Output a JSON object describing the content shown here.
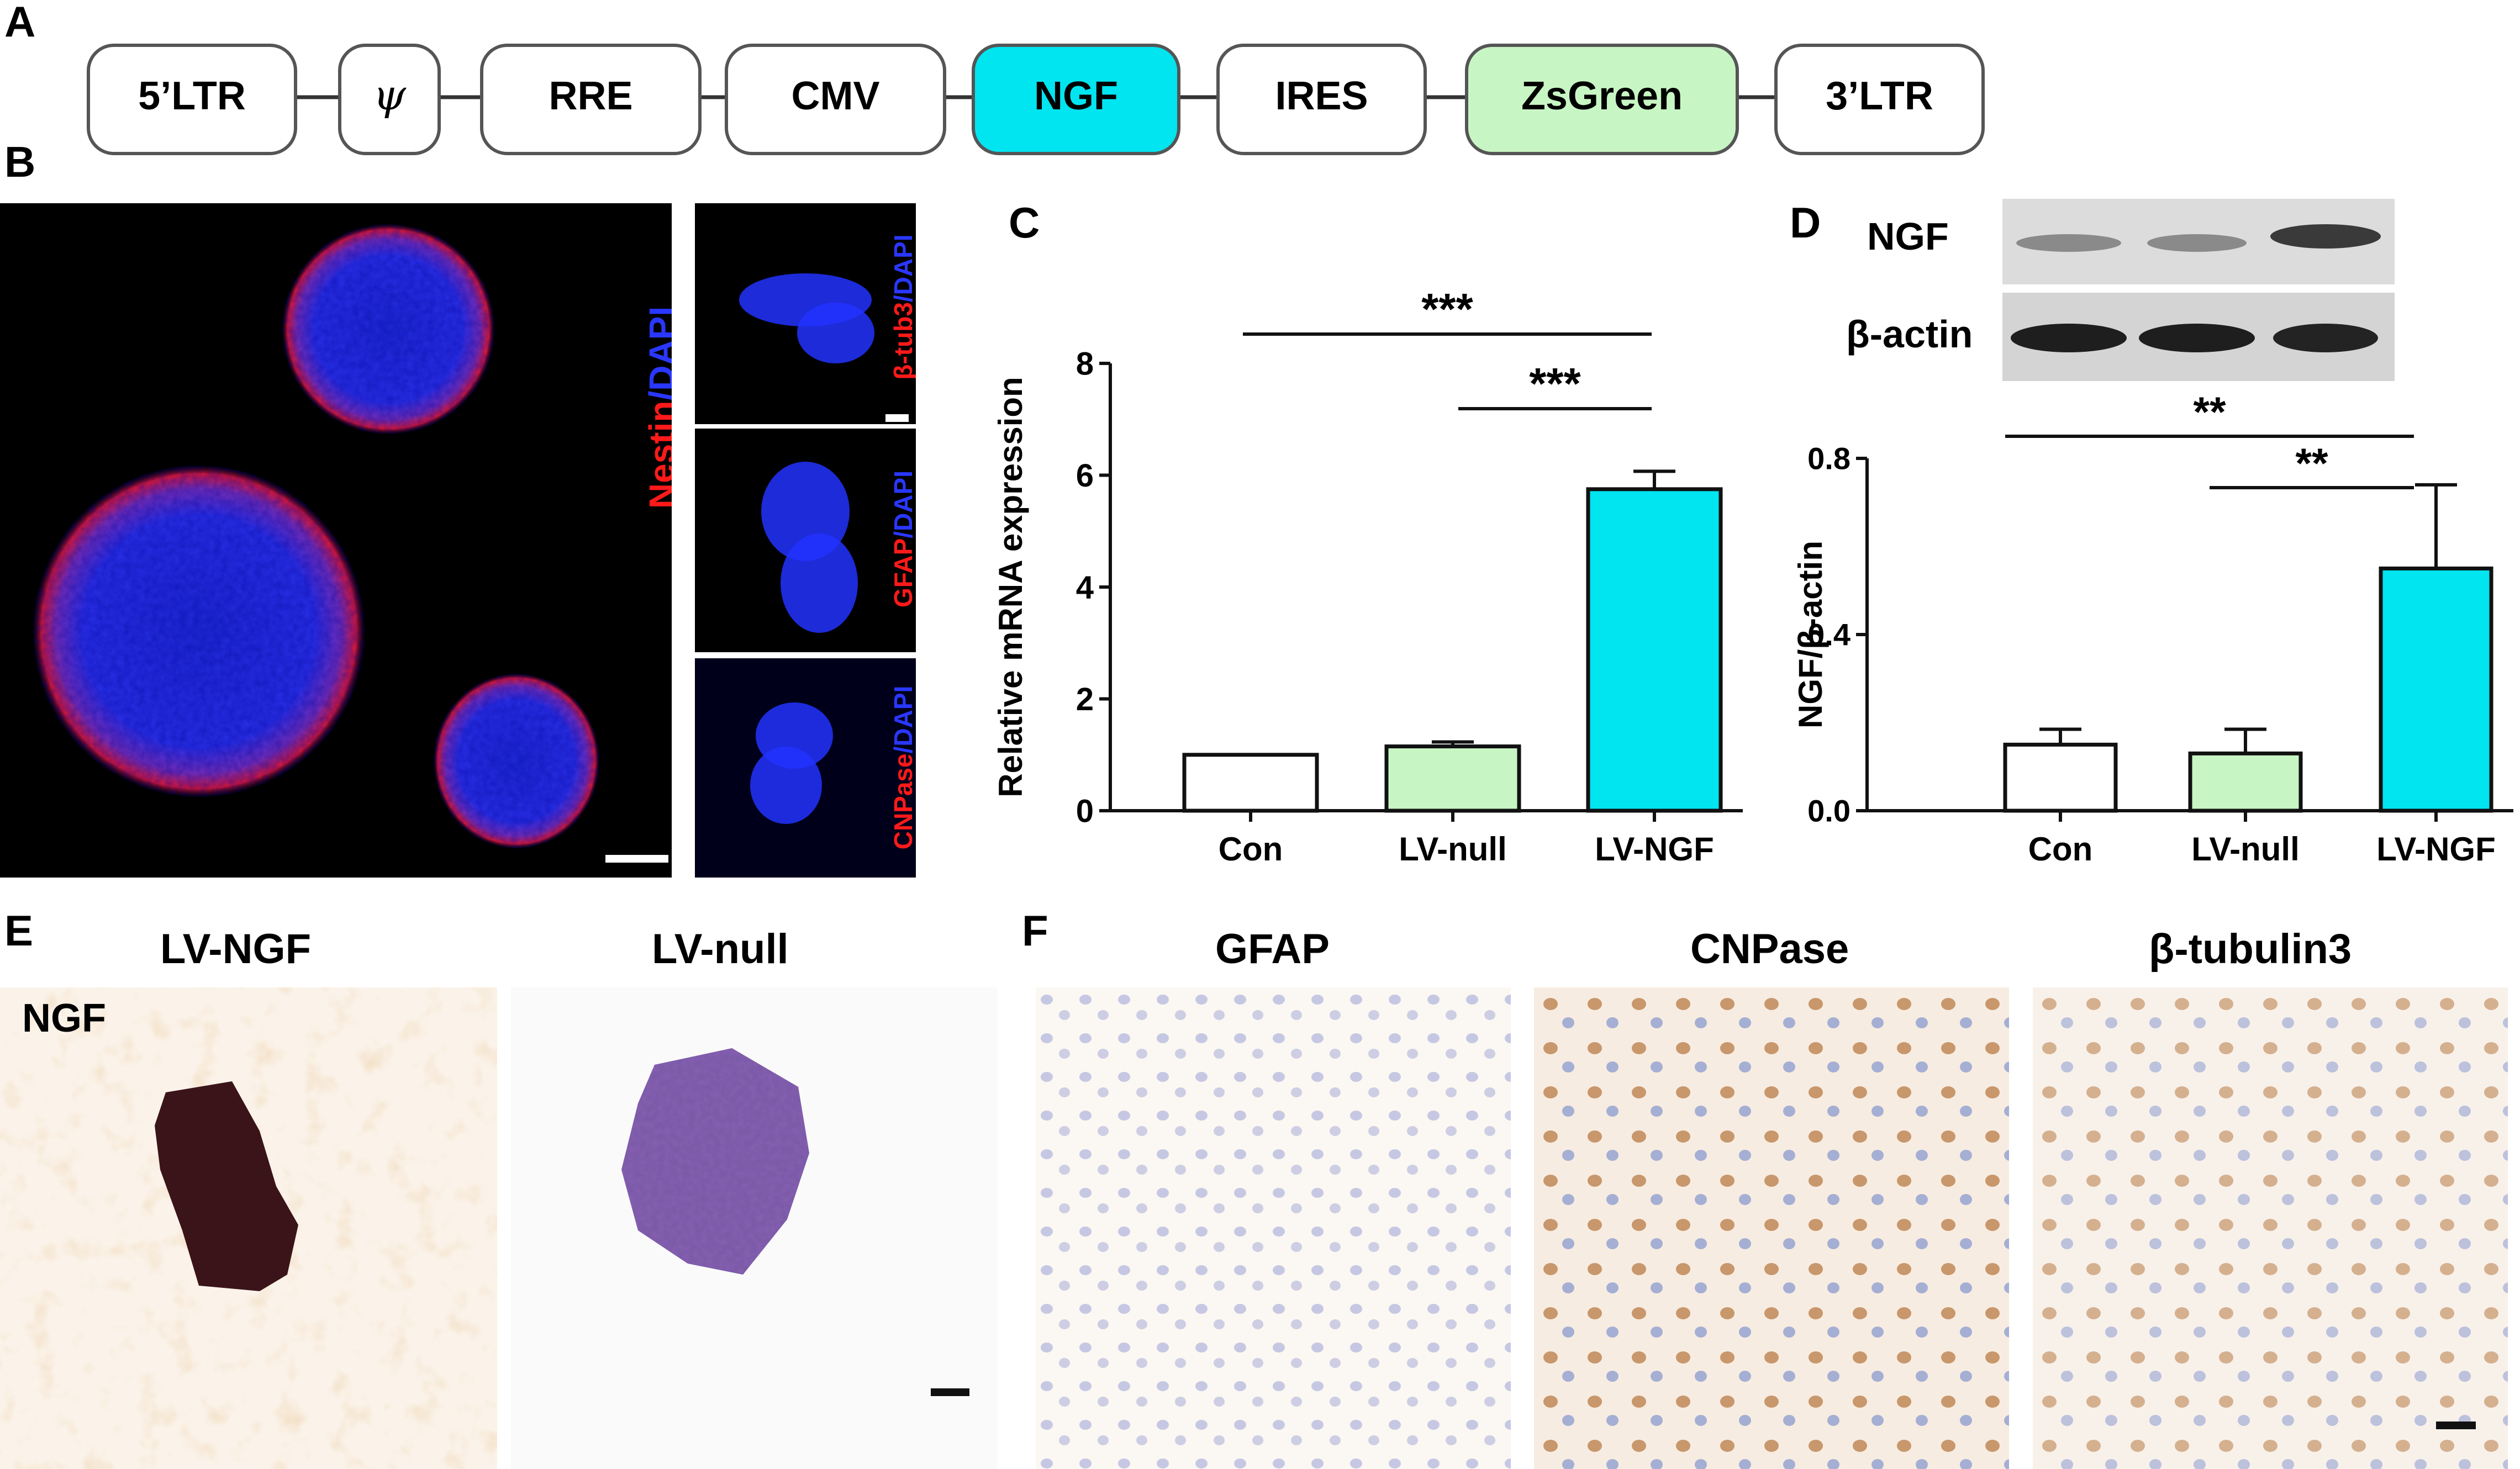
{
  "panel_labels": {
    "a": "A",
    "b": "B",
    "c": "C",
    "d": "D",
    "e": "E",
    "f": "F"
  },
  "construct": {
    "elements": [
      {
        "label": "5’LTR",
        "fill": "#ffffff"
      },
      {
        "label": "ψ",
        "fill": "#ffffff"
      },
      {
        "label": "RRE",
        "fill": "#ffffff"
      },
      {
        "label": "CMV",
        "fill": "#ffffff"
      },
      {
        "label": "NGF",
        "fill": "#00e5f0"
      },
      {
        "label": "IRES",
        "fill": "#ffffff"
      },
      {
        "label": "ZsGreen",
        "fill": "#c8f5c4"
      },
      {
        "label": "3’LTR",
        "fill": "#ffffff"
      }
    ]
  },
  "panel_b": {
    "main_label_nestin": "Nestin",
    "main_label_dapi": "/DAPI",
    "small": [
      {
        "marker": "β-tub3",
        "dapi": "/DAPI"
      },
      {
        "marker": "GFAP",
        "dapi": "/DAPI"
      },
      {
        "marker": "CNPase",
        "dapi": "/DAPI"
      }
    ],
    "colors": {
      "red": "#ff1a1a",
      "blue": "#1a2bff"
    }
  },
  "chart_data": [
    {
      "type": "bar",
      "panel": "C",
      "categories": [
        "Con",
        "LV-null",
        "LV-NGF"
      ],
      "values": [
        1.0,
        1.15,
        5.75
      ],
      "errors": [
        0.0,
        0.08,
        0.32
      ],
      "colors": [
        "#ffffff",
        "#c8f5c4",
        "#00e5f0"
      ],
      "ylabel": "Relative mRNA expression",
      "ylim": [
        0,
        8
      ],
      "yticks": [
        "0",
        "2",
        "4",
        "6",
        "8"
      ],
      "significance": [
        "***",
        "***"
      ]
    },
    {
      "type": "bar",
      "panel": "D",
      "categories": [
        "Con",
        "LV-null",
        "LV-NGF"
      ],
      "values": [
        0.15,
        0.13,
        0.55
      ],
      "errors": [
        0.035,
        0.055,
        0.19
      ],
      "colors": [
        "#ffffff",
        "#c8f5c4",
        "#00e5f0"
      ],
      "ylabel": "NGF/β-actin",
      "ylim": [
        0,
        0.8
      ],
      "yticks": [
        "0.0",
        "0.4",
        "0.8"
      ],
      "significance": [
        "**",
        "**"
      ]
    }
  ],
  "blot": {
    "rows": [
      "NGF",
      "β-actin"
    ]
  },
  "panel_e": {
    "titles": [
      "LV-NGF",
      "LV-null"
    ],
    "stain": "NGF"
  },
  "panel_f": {
    "titles": [
      "GFAP",
      "CNPase",
      "β-tubulin3"
    ]
  }
}
